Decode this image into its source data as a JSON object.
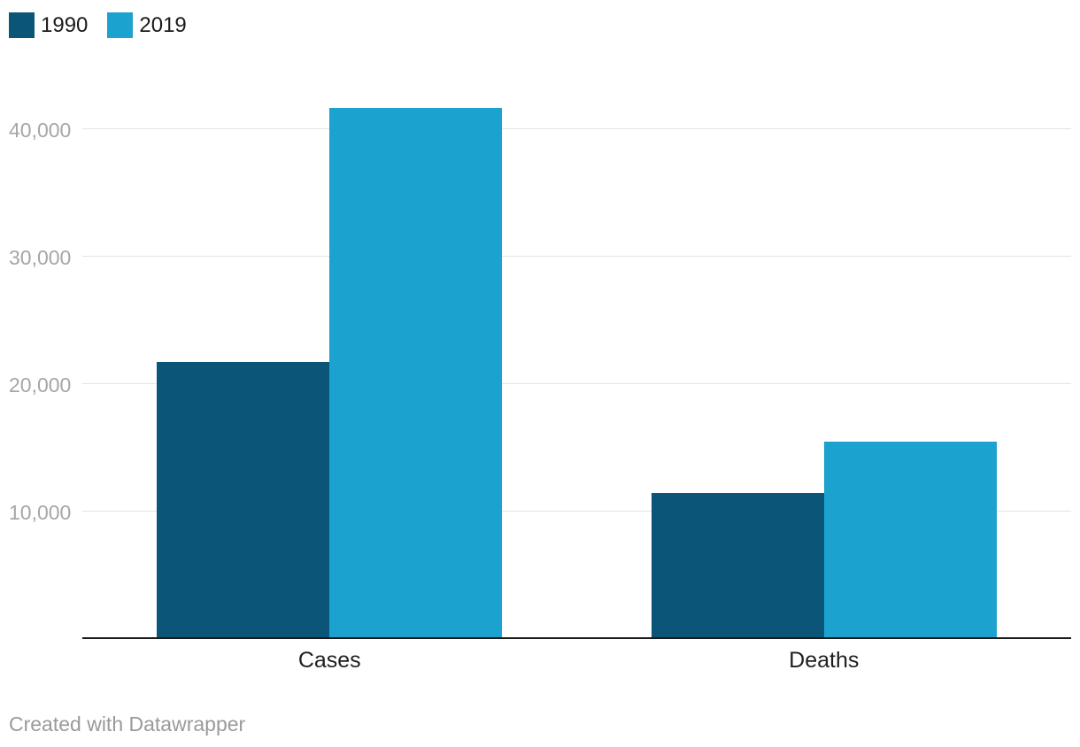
{
  "legend": {
    "position": "top-left",
    "items": [
      {
        "label": "1990",
        "color": "#0b5578"
      },
      {
        "label": "2019",
        "color": "#1ca2cf"
      }
    ]
  },
  "footer": {
    "credit": "Created with Datawrapper"
  },
  "colors": {
    "series_1990": "#0b5578",
    "series_2019": "#1ca2cf",
    "gridline": "#e4e4e4",
    "axis_line": "#1a1a1a",
    "tick_label": "#a6a6a6"
  },
  "chart_data": {
    "type": "bar",
    "categories": [
      "Cases",
      "Deaths"
    ],
    "series": [
      {
        "name": "1990",
        "color": "#0b5578",
        "values": [
          21700,
          11400
        ]
      },
      {
        "name": "2019",
        "color": "#1ca2cf",
        "values": [
          41600,
          15400
        ]
      }
    ],
    "ylim": [
      0,
      45000
    ],
    "yticks": [
      10000,
      20000,
      30000,
      40000
    ],
    "ytick_labels": [
      "10,000",
      "20,000",
      "30,000",
      "40,000"
    ],
    "grid": true,
    "legend_position": "top-left",
    "title": "",
    "xlabel": "",
    "ylabel": ""
  }
}
